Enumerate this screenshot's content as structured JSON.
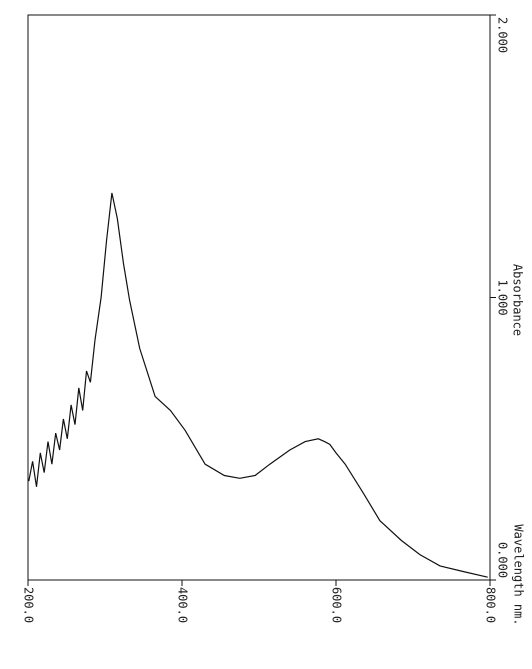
{
  "chart_data": {
    "type": "line",
    "x_label": "Wavelength nm.",
    "y_label": "Absorbance",
    "xlim": [
      200,
      800
    ],
    "xticks": [
      {
        "value": 200,
        "label": "200.0"
      },
      {
        "value": 400,
        "label": "400.0"
      },
      {
        "value": 600,
        "label": "600.0"
      },
      {
        "value": 800,
        "label": "800.0"
      }
    ],
    "ylim": [
      0,
      2
    ],
    "yticks": [
      {
        "value": 0,
        "label": "0.000"
      },
      {
        "value": 1,
        "label": "1.000"
      },
      {
        "value": 2,
        "label": "2.000"
      }
    ],
    "color": "#111111",
    "x": [
      201,
      206,
      211,
      216,
      221,
      226,
      231,
      236,
      241,
      246,
      251,
      256,
      261,
      266,
      271,
      276,
      281,
      287,
      295,
      302,
      309,
      316,
      324,
      332,
      345,
      365,
      385,
      404,
      430,
      455,
      475,
      495,
      514,
      540,
      560,
      577,
      585,
      592,
      600,
      612,
      635,
      657,
      685,
      709,
      735,
      765,
      797
    ],
    "values": [
      0.35,
      0.42,
      0.33,
      0.45,
      0.38,
      0.49,
      0.41,
      0.52,
      0.46,
      0.57,
      0.5,
      0.62,
      0.55,
      0.68,
      0.6,
      0.74,
      0.7,
      0.85,
      1.0,
      1.2,
      1.37,
      1.28,
      1.12,
      0.99,
      0.82,
      0.65,
      0.6,
      0.53,
      0.41,
      0.37,
      0.36,
      0.37,
      0.41,
      0.46,
      0.49,
      0.5,
      0.49,
      0.48,
      0.45,
      0.41,
      0.31,
      0.21,
      0.14,
      0.09,
      0.05,
      0.03,
      0.01
    ]
  }
}
